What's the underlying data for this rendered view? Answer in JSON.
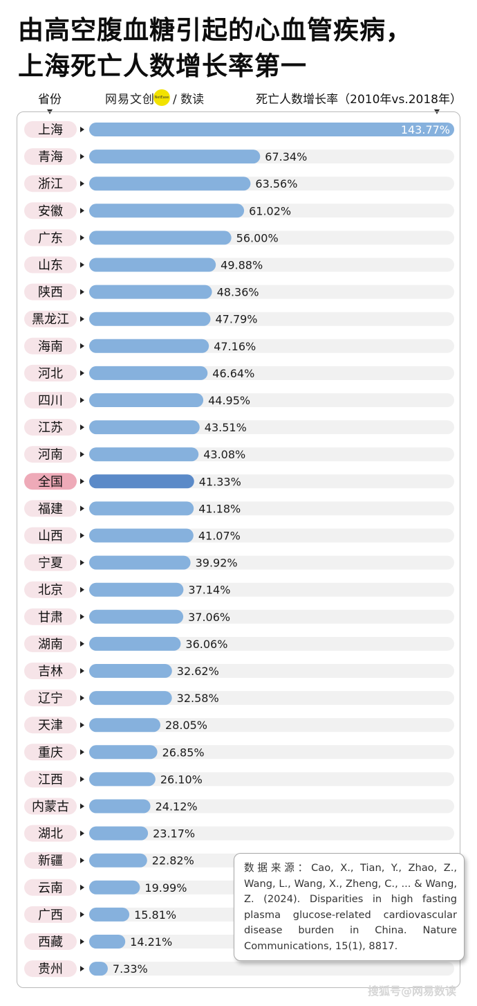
{
  "title_line1": "由高空腹血糖引起的心血管疾病，",
  "title_line2": "上海死亡人数增长率第一",
  "header": {
    "province_label": "省份",
    "logo_text": "网易文创",
    "logo_badge": "NetEase",
    "logo_suffix": "/ 数读",
    "metric_label": "死亡人数增长率（2010年vs.2018年）"
  },
  "colors": {
    "bar": "#86b1dd",
    "bar_highlight": "#5b8ac8",
    "track": "#f1f1f1",
    "label_bg": "#f6e4e8",
    "label_bg_highlight": "#eeaab8"
  },
  "chart_data": {
    "type": "bar",
    "orientation": "horizontal",
    "title": "由高空腹血糖引起的心血管疾病，上海死亡人数增长率第一",
    "xlabel": "死亡人数增长率（2010年vs.2018年）",
    "ylabel": "省份",
    "xlim": [
      0,
      143.77
    ],
    "highlight": "全国",
    "categories": [
      "上海",
      "青海",
      "浙江",
      "安徽",
      "广东",
      "山东",
      "陕西",
      "黑龙江",
      "海南",
      "河北",
      "四川",
      "江苏",
      "河南",
      "全国",
      "福建",
      "山西",
      "宁夏",
      "北京",
      "甘肃",
      "湖南",
      "吉林",
      "辽宁",
      "天津",
      "重庆",
      "江西",
      "内蒙古",
      "湖北",
      "新疆",
      "云南",
      "广西",
      "西藏",
      "贵州"
    ],
    "values": [
      143.77,
      67.34,
      63.56,
      61.02,
      56.0,
      49.88,
      48.36,
      47.79,
      47.16,
      46.64,
      44.95,
      43.51,
      43.08,
      41.33,
      41.18,
      41.07,
      39.92,
      37.14,
      37.06,
      36.06,
      32.62,
      32.58,
      28.05,
      26.85,
      26.1,
      24.12,
      23.17,
      22.82,
      19.99,
      15.81,
      14.21,
      7.33
    ],
    "value_labels": [
      "143.77%",
      "67.34%",
      "63.56%",
      "61.02%",
      "56.00%",
      "49.88%",
      "48.36%",
      "47.79%",
      "47.16%",
      "46.64%",
      "44.95%",
      "43.51%",
      "43.08%",
      "41.33%",
      "41.18%",
      "41.07%",
      "39.92%",
      "37.14%",
      "37.06%",
      "36.06%",
      "32.62%",
      "32.58%",
      "28.05%",
      "26.85%",
      "26.10%",
      "24.12%",
      "23.17%",
      "22.82%",
      "19.99%",
      "15.81%",
      "14.21%",
      "7.33%"
    ]
  },
  "source": "数据来源：Cao, X., Tian, Y., Zhao, Z., Wang, L., Wang, X., Zheng, C., ... & Wang, Z. (2024). Disparities in high fasting plasma glucose-related cardiovascular disease burden in China. Nature Communications, 15(1), 8817.",
  "watermark": "搜狐号@网易数读"
}
